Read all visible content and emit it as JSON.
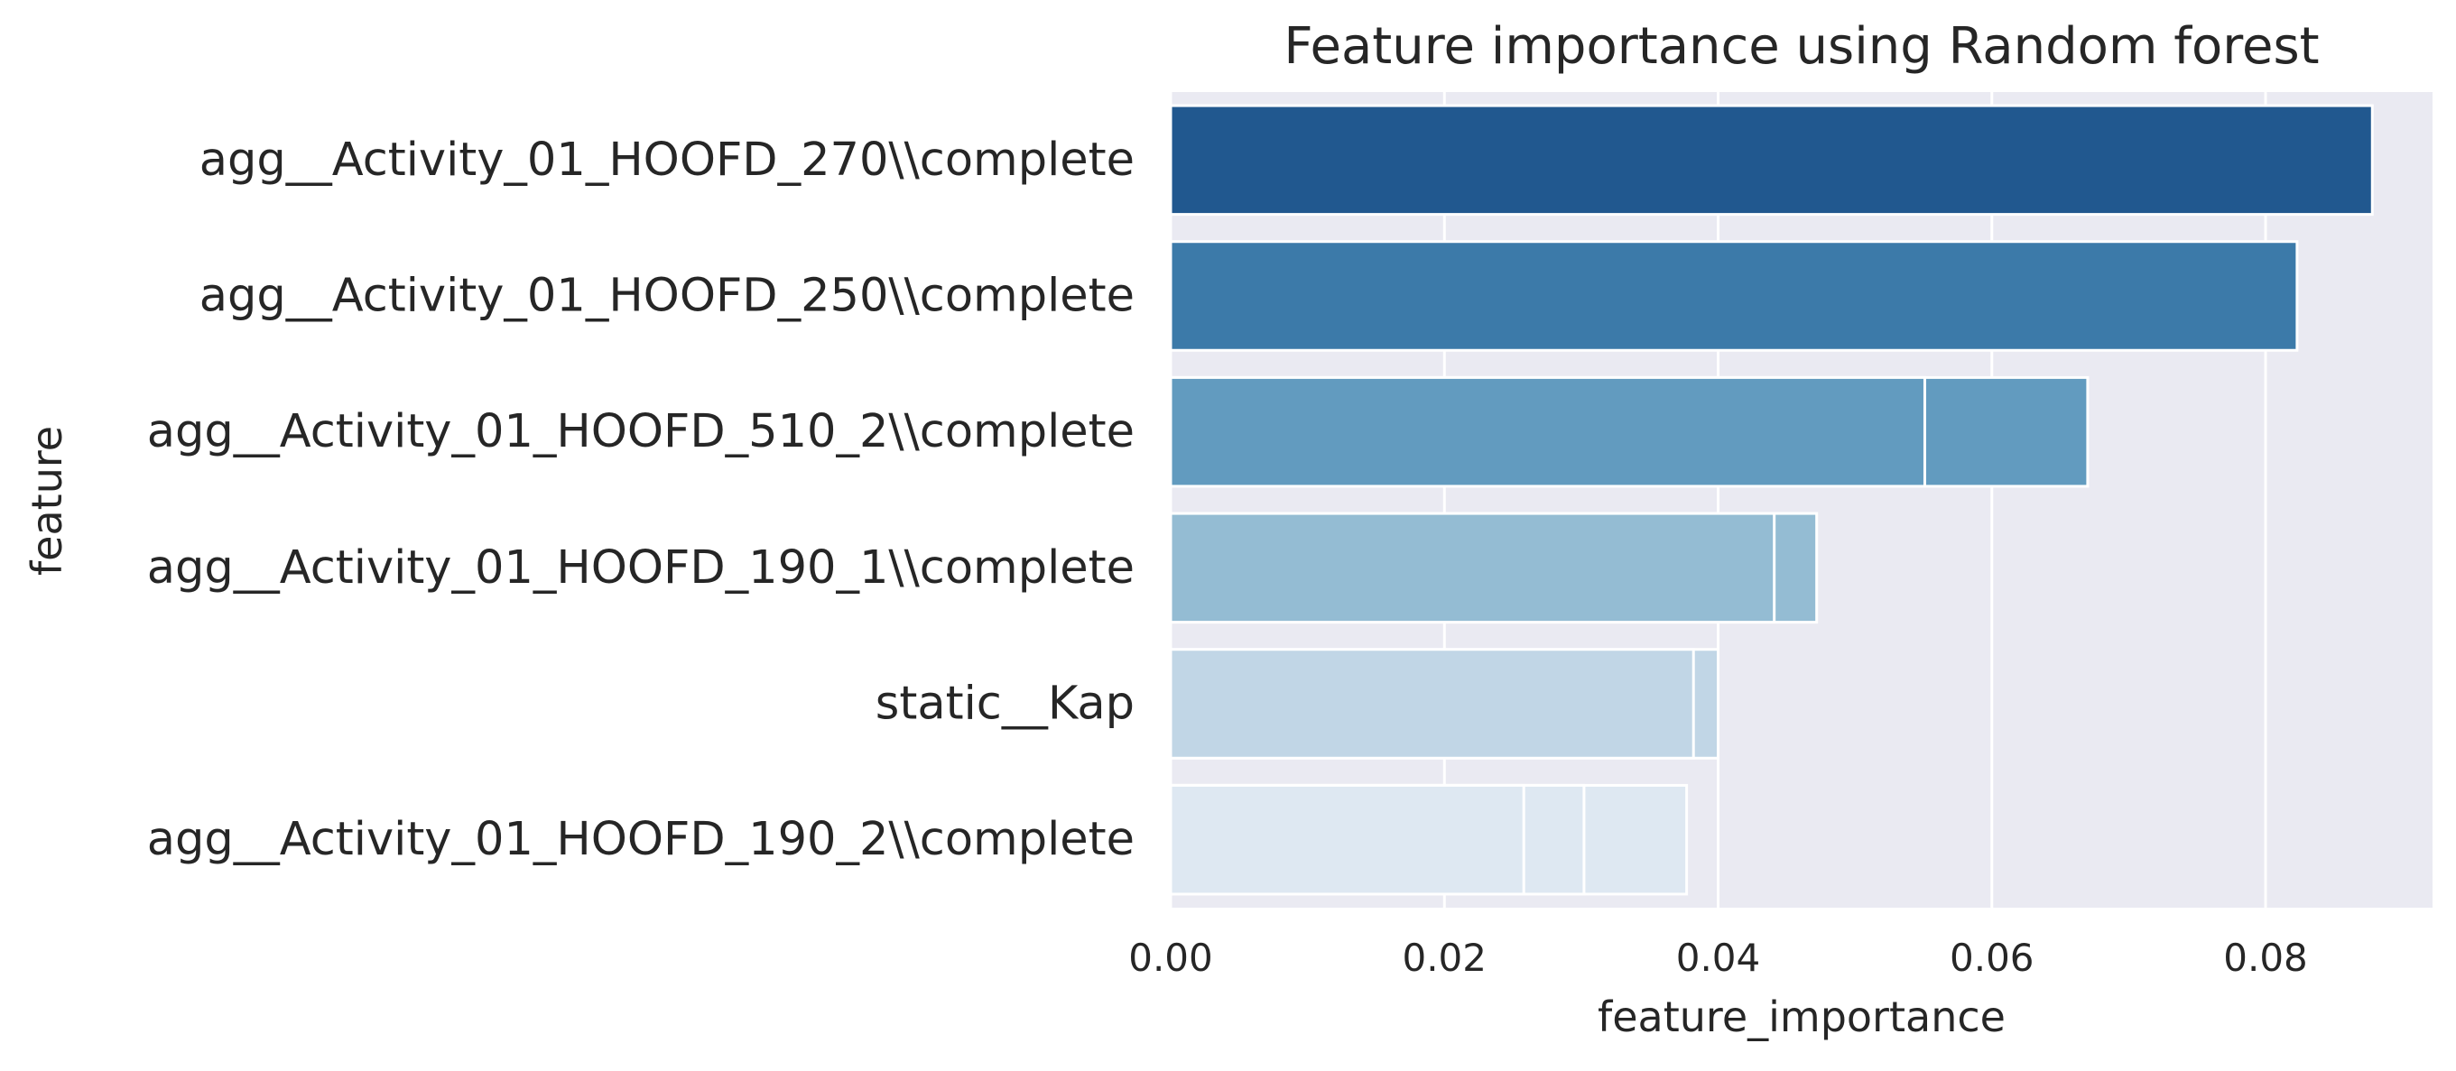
{
  "chart_data": {
    "type": "bar",
    "orientation": "horizontal",
    "title": "Feature importance using Random forest",
    "xlabel": "feature_importance",
    "ylabel": "feature",
    "xlim": [
      0,
      0.0922
    ],
    "xticks": [
      0.0,
      0.02,
      0.04,
      0.06,
      0.08
    ],
    "xtick_labels": [
      "0.00",
      "0.02",
      "0.04",
      "0.06",
      "0.08"
    ],
    "grid": true,
    "categories": [
      "agg__Activity_01_HOOFD_270\\\\complete",
      "agg__Activity_01_HOOFD_250\\\\complete",
      "agg__Activity_01_HOOFD_510_2\\\\complete",
      "agg__Activity_01_HOOFD_190_1\\\\complete",
      "static__Kap",
      "agg__Activity_01_HOOFD_190_2\\\\complete"
    ],
    "bars": [
      {
        "category_index": 0,
        "value": 0.0878,
        "color": "#21588f"
      },
      {
        "category_index": 1,
        "value": 0.0823,
        "color": "#3c7aa9"
      },
      {
        "category_index": 2,
        "value": 0.067,
        "color": "#629bbf"
      },
      {
        "category_index": 2,
        "value": 0.0551,
        "color": "#629bbf"
      },
      {
        "category_index": 3,
        "value": 0.0472,
        "color": "#94bcd3"
      },
      {
        "category_index": 3,
        "value": 0.0441,
        "color": "#94bcd3"
      },
      {
        "category_index": 4,
        "value": 0.04,
        "color": "#c1d6e6"
      },
      {
        "category_index": 4,
        "value": 0.0382,
        "color": "#c1d6e6"
      },
      {
        "category_index": 5,
        "value": 0.0377,
        "color": "#dee8f2"
      },
      {
        "category_index": 5,
        "value": 0.0302,
        "color": "#dee8f2"
      },
      {
        "category_index": 5,
        "value": 0.0258,
        "color": "#dee8f2"
      }
    ],
    "colors": {
      "plot_background": "#eaeaf2",
      "grid": "#ffffff",
      "text": "#262626"
    }
  }
}
